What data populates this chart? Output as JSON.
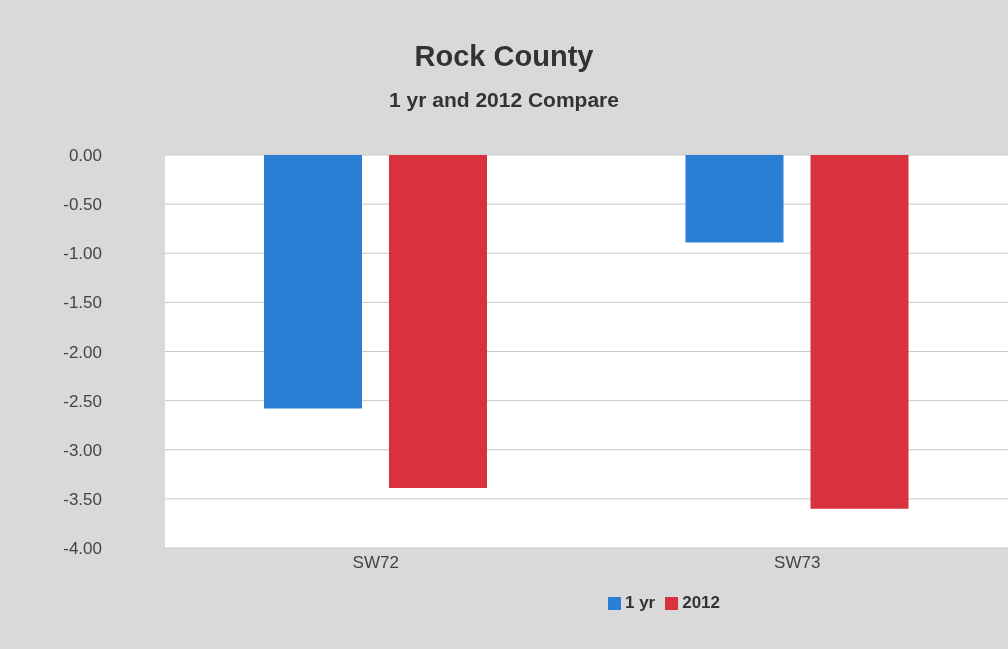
{
  "chart_data": {
    "type": "bar",
    "title": "Rock County",
    "subtitle": "1 yr and 2012 Compare",
    "categories": [
      "SW72",
      "SW73"
    ],
    "series": [
      {
        "name": "1 yr",
        "color": "#2a7fd4",
        "values": [
          -2.58,
          -0.89
        ]
      },
      {
        "name": "2012",
        "color": "#d8323f",
        "values": [
          -3.39,
          -3.6
        ]
      }
    ],
    "ylim": [
      -4,
      0
    ],
    "yticks": [
      {
        "value": 0,
        "label": "0.00"
      },
      {
        "value": -0.5,
        "label": "-0.50"
      },
      {
        "value": -1,
        "label": "-1.00"
      },
      {
        "value": -1.5,
        "label": "-1.50"
      },
      {
        "value": -2,
        "label": "-2.00"
      },
      {
        "value": -2.5,
        "label": "-2.50"
      },
      {
        "value": -3,
        "label": "-3.00"
      },
      {
        "value": -3.5,
        "label": "-3.50"
      },
      {
        "value": -4,
        "label": "-4.00"
      }
    ],
    "grid": "y",
    "legend": "bottom"
  }
}
